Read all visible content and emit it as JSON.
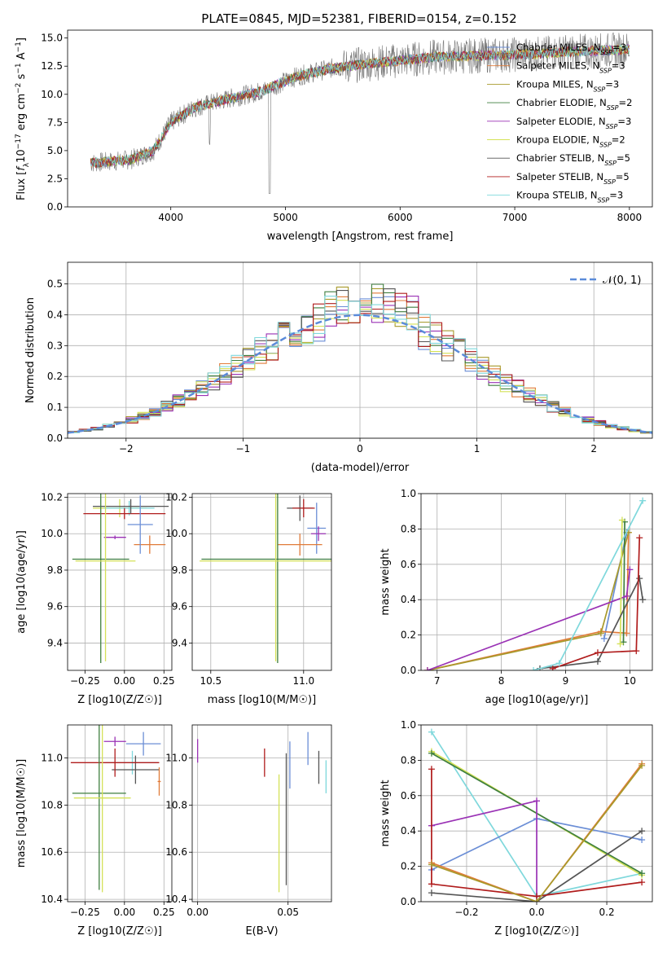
{
  "title": "PLATE=0845, MJD=52381, FIBERID=0154, z=0.152",
  "legend": [
    {
      "label": "Chabrier MILES, N",
      "sub": "SSP",
      "tail": "=3",
      "color": "#6b8ed6"
    },
    {
      "label": "Salpeter MILES, N",
      "sub": "SSP",
      "tail": "=3",
      "color": "#e07b39"
    },
    {
      "label": "Kroupa MILES, N",
      "sub": "SSP",
      "tail": "=3",
      "color": "#a89a2c"
    },
    {
      "label": "Chabrier ELODIE, N",
      "sub": "SSP",
      "tail": "=2",
      "color": "#3f7f3f"
    },
    {
      "label": "Salpeter ELODIE, N",
      "sub": "SSP",
      "tail": "=3",
      "color": "#9a32b5"
    },
    {
      "label": "Kroupa ELODIE, N",
      "sub": "SSP",
      "tail": "=2",
      "color": "#d4e157"
    },
    {
      "label": "Chabrier STELIB, N",
      "sub": "SSP",
      "tail": "=5",
      "color": "#555555"
    },
    {
      "label": "Salpeter STELIB, N",
      "sub": "SSP",
      "tail": "=5",
      "color": "#b01c1c"
    },
    {
      "label": "Kroupa STELIB, N",
      "sub": "SSP",
      "tail": "=3",
      "color": "#7fd8dc"
    }
  ],
  "chart_data": [
    {
      "type": "line",
      "xlabel": "wavelength [Angstrom, rest frame]",
      "ylabel": "Flux [f_λ 10^-17 erg cm^-2 s^-1 A^-1]",
      "xlim": [
        3100,
        8200
      ],
      "ylim": [
        0,
        15.7
      ],
      "xticks": [
        4000,
        5000,
        6000,
        7000,
        8000
      ],
      "yticks": [
        0.0,
        2.5,
        5.0,
        7.5,
        10.0,
        12.5,
        15.0
      ],
      "grid": false,
      "legend_position": "top-right",
      "spectrum_anchors": {
        "x": [
          3300,
          3450,
          3650,
          3850,
          4000,
          4200,
          4500,
          4800,
          5100,
          5400,
          5700,
          6000,
          6300,
          6600,
          6900,
          7200,
          7500,
          7800,
          8000
        ],
        "y": [
          3.9,
          4.0,
          4.2,
          5.0,
          7.5,
          8.8,
          9.6,
          10.3,
          11.6,
          12.3,
          12.7,
          13.0,
          13.3,
          13.4,
          13.5,
          13.6,
          13.8,
          13.9,
          14.0
        ]
      }
    },
    {
      "type": "bar",
      "xlabel": "(data-model)/error",
      "ylabel": "Normed distribution",
      "xlim": [
        -2.5,
        2.5
      ],
      "ylim": [
        0,
        0.57
      ],
      "xticks": [
        -2,
        -1,
        0,
        1,
        2
      ],
      "yticks": [
        0.0,
        0.1,
        0.2,
        0.3,
        0.4,
        0.5
      ],
      "grid": true,
      "legend_position": "top-right",
      "reference_label": "𝒩(0, 1)",
      "reference_color": "#5b8bd9",
      "bin_width": 0.1
    },
    {
      "type": "scatter",
      "xlabel": "Z [log10(Z/Z☉)]",
      "ylabel": "age  [log10(age/yr)]",
      "xlim": [
        -0.36,
        0.3
      ],
      "ylim": [
        9.25,
        10.22
      ],
      "xticks": [
        -0.25,
        0.0,
        0.25
      ],
      "xticklabels": [
        "−0.25",
        "0.00",
        "0.25"
      ],
      "yticks": [
        9.4,
        9.6,
        9.8,
        10.0,
        10.2
      ],
      "grid": true,
      "points": [
        {
          "x": -0.03,
          "y": 10.14,
          "xerr": 0.17,
          "yerr": 0.05,
          "c": 5
        },
        {
          "x": 0.03,
          "y": 10.14,
          "xerr": 0.16,
          "yerr": 0.04,
          "c": 8
        },
        {
          "x": 0.0,
          "y": 10.11,
          "xerr": 0.26,
          "yerr": 0.03,
          "c": 7
        },
        {
          "x": 0.04,
          "y": 10.15,
          "xerr": 0.24,
          "yerr": 0.04,
          "c": 6
        },
        {
          "x": 0.16,
          "y": 9.94,
          "xerr": 0.1,
          "yerr": 0.05,
          "c": 1
        },
        {
          "x": 0.1,
          "y": 10.05,
          "xerr": 0.08,
          "yerr": 0.16,
          "c": 0
        },
        {
          "x": -0.06,
          "y": 9.98,
          "xerr": 0.07,
          "yerr": 0.01,
          "c": 4
        },
        {
          "x": -0.15,
          "y": 9.86,
          "xerr": 0.18,
          "yerr": 0.57,
          "c": 3
        },
        {
          "x": -0.12,
          "y": 9.85,
          "xerr": 0.19,
          "yerr": 0.55,
          "c": 5
        }
      ]
    },
    {
      "type": "scatter",
      "xlabel": "mass [log10(M/M☉)]",
      "ylabel": "",
      "xlim": [
        10.4,
        11.15
      ],
      "ylim": [
        9.25,
        10.22
      ],
      "xticks": [
        10.5,
        11.0
      ],
      "yticks": [
        9.4,
        9.6,
        9.8,
        10.0,
        10.2
      ],
      "grid": true,
      "points": [
        {
          "x": 10.98,
          "y": 10.14,
          "xerr": 0.07,
          "yerr": 0.07,
          "c": 6
        },
        {
          "x": 11.0,
          "y": 10.14,
          "xerr": 0.06,
          "yerr": 0.05,
          "c": 7
        },
        {
          "x": 11.07,
          "y": 10.03,
          "xerr": 0.05,
          "yerr": 0.14,
          "c": 0
        },
        {
          "x": 11.08,
          "y": 10.0,
          "xerr": 0.04,
          "yerr": 0.04,
          "c": 4
        },
        {
          "x": 10.98,
          "y": 9.94,
          "xerr": 0.12,
          "yerr": 0.06,
          "c": 1
        },
        {
          "x": 10.86,
          "y": 9.86,
          "xerr": 0.41,
          "yerr": 0.57,
          "c": 3
        },
        {
          "x": 10.85,
          "y": 9.85,
          "xerr": 0.41,
          "yerr": 0.55,
          "c": 5
        }
      ]
    },
    {
      "type": "line",
      "xlabel": "age  [log10(age/yr)]",
      "ylabel": "mass weight",
      "xlim": [
        6.75,
        10.35
      ],
      "ylim": [
        0,
        1.0
      ],
      "xticks": [
        7,
        8,
        9,
        10
      ],
      "yticks": [
        0.0,
        0.2,
        0.4,
        0.6,
        0.8,
        1.0
      ],
      "grid": true,
      "series": [
        {
          "c": 0,
          "x": [
            9.6,
            9.95
          ],
          "y": [
            0.18,
            0.78
          ]
        },
        {
          "c": 1,
          "x": [
            6.85,
            9.55,
            9.95,
            9.98
          ],
          "y": [
            0.0,
            0.22,
            0.21,
            0.78
          ]
        },
        {
          "c": 2,
          "x": [
            6.85,
            9.55,
            9.98
          ],
          "y": [
            0.0,
            0.21,
            0.78
          ]
        },
        {
          "c": 3,
          "x": [
            9.9,
            9.92
          ],
          "y": [
            0.16,
            0.84
          ]
        },
        {
          "c": 4,
          "x": [
            6.85,
            9.95,
            10.0
          ],
          "y": [
            0.0,
            0.42,
            0.57
          ]
        },
        {
          "c": 5,
          "x": [
            9.85,
            9.88
          ],
          "y": [
            0.15,
            0.85
          ]
        },
        {
          "c": 6,
          "x": [
            8.6,
            9.5,
            10.15,
            10.2
          ],
          "y": [
            0.01,
            0.05,
            0.52,
            0.4
          ]
        },
        {
          "c": 7,
          "x": [
            8.8,
            9.5,
            10.1,
            10.15
          ],
          "y": [
            0.01,
            0.1,
            0.11,
            0.75
          ]
        },
        {
          "c": 8,
          "x": [
            8.5,
            8.9,
            10.2
          ],
          "y": [
            0.0,
            0.04,
            0.96
          ]
        }
      ]
    },
    {
      "type": "scatter",
      "xlabel": "Z [log10(Z/Z☉)]",
      "ylabel": "mass [log10(M/M☉)]",
      "xlim": [
        -0.36,
        0.3
      ],
      "ylim": [
        10.39,
        11.14
      ],
      "xticks": [
        -0.25,
        0.0,
        0.25
      ],
      "xticklabels": [
        "−0.25",
        "0.00",
        "0.25"
      ],
      "yticks": [
        10.4,
        10.6,
        10.8,
        11.0
      ],
      "grid": true,
      "points": [
        {
          "x": -0.06,
          "y": 11.07,
          "xerr": 0.07,
          "yerr": 0.02,
          "c": 4
        },
        {
          "x": 0.12,
          "y": 11.06,
          "xerr": 0.11,
          "yerr": 0.05,
          "c": 0
        },
        {
          "x": 0.05,
          "y": 10.98,
          "xerr": 0.17,
          "yerr": 0.05,
          "c": 8
        },
        {
          "x": 0.07,
          "y": 10.95,
          "xerr": 0.15,
          "yerr": 0.06,
          "c": 6
        },
        {
          "x": -0.06,
          "y": 10.98,
          "xerr": 0.28,
          "yerr": 0.06,
          "c": 7
        },
        {
          "x": 0.22,
          "y": 10.9,
          "xerr": 0.01,
          "yerr": 0.06,
          "c": 1
        },
        {
          "x": -0.16,
          "y": 10.85,
          "xerr": 0.17,
          "yerr": 0.41,
          "c": 3
        },
        {
          "x": -0.14,
          "y": 10.83,
          "xerr": 0.18,
          "yerr": 0.4,
          "c": 5
        }
      ]
    },
    {
      "type": "scatter",
      "xlabel": "E(B-V)",
      "ylabel": "",
      "xlim": [
        -0.003,
        0.074
      ],
      "ylim": [
        10.39,
        11.14
      ],
      "xticks": [
        0.0,
        0.05
      ],
      "xticklabels": [
        "0.00",
        "0.05"
      ],
      "yticks": [
        10.4,
        10.6,
        10.8,
        11.0
      ],
      "grid": true,
      "points": [
        {
          "x": 0.0,
          "y": 11.03,
          "xerr": 0,
          "yerr": 0.05,
          "c": 4
        },
        {
          "x": 0.037,
          "y": 10.98,
          "xerr": 0,
          "yerr": 0.06,
          "c": 7
        },
        {
          "x": 0.045,
          "y": 10.68,
          "xerr": 0,
          "yerr": 0.25,
          "c": 5
        },
        {
          "x": 0.049,
          "y": 10.74,
          "xerr": 0,
          "yerr": 0.28,
          "c": 6
        },
        {
          "x": 0.051,
          "y": 10.97,
          "xerr": 0,
          "yerr": 0.1,
          "c": 0
        },
        {
          "x": 0.061,
          "y": 11.04,
          "xerr": 0,
          "yerr": 0.07,
          "c": 0
        },
        {
          "x": 0.067,
          "y": 10.96,
          "xerr": 0,
          "yerr": 0.07,
          "c": 6
        },
        {
          "x": 0.071,
          "y": 10.92,
          "xerr": 0,
          "yerr": 0.07,
          "c": 8
        }
      ]
    },
    {
      "type": "line",
      "xlabel": "Z [log10(Z/Z☉)]",
      "ylabel": "mass weight",
      "xlim": [
        -0.33,
        0.33
      ],
      "ylim": [
        0,
        1.0
      ],
      "xticks": [
        -0.2,
        0.0,
        0.2
      ],
      "xticklabels": [
        "−0.2",
        "0.0",
        "0.2"
      ],
      "yticks": [
        0.0,
        0.2,
        0.4,
        0.6,
        0.8,
        1.0
      ],
      "grid": true,
      "series": [
        {
          "c": 8,
          "x": [
            -0.3,
            0.0,
            0.0,
            0.3
          ],
          "y": [
            0.96,
            0.03,
            0.03,
            0.16
          ]
        },
        {
          "c": 0,
          "x": [
            -0.3,
            0.0,
            0.3
          ],
          "y": [
            0.18,
            0.47,
            0.35
          ]
        },
        {
          "c": 5,
          "x": [
            -0.3,
            0.3
          ],
          "y": [
            0.85,
            0.15
          ]
        },
        {
          "c": 3,
          "x": [
            -0.3,
            0.3
          ],
          "y": [
            0.84,
            0.16
          ]
        },
        {
          "c": 4,
          "x": [
            -0.3,
            0.0,
            0.0
          ],
          "y": [
            0.43,
            0.57,
            0.0
          ]
        },
        {
          "c": 6,
          "x": [
            -0.3,
            0.0,
            0.3
          ],
          "y": [
            0.05,
            0.0,
            0.4
          ]
        },
        {
          "c": 7,
          "x": [
            -0.3,
            -0.3,
            0.0,
            0.3
          ],
          "y": [
            0.75,
            0.1,
            0.03,
            0.11
          ]
        },
        {
          "c": 1,
          "x": [
            -0.3,
            0.0,
            0.3
          ],
          "y": [
            0.22,
            0.0,
            0.78
          ]
        },
        {
          "c": 2,
          "x": [
            -0.3,
            0.0,
            0.3
          ],
          "y": [
            0.21,
            0.0,
            0.77
          ]
        }
      ]
    }
  ]
}
